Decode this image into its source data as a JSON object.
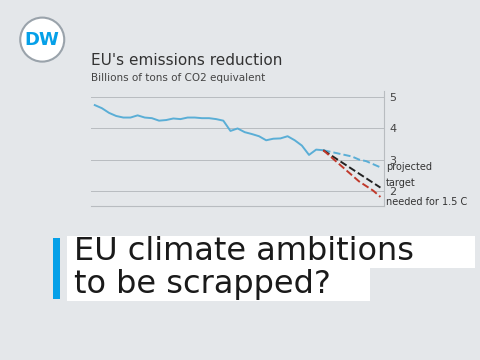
{
  "header": {
    "logo": "DW",
    "headline": [
      "EU climate ambitions",
      "to be scrapped?"
    ]
  },
  "chart_data": {
    "type": "line",
    "title": "EU's emissions reduction",
    "subtitle": "Billions of tons of CO2 equivalent",
    "categories": [
      null,
      null,
      null,
      null,
      null,
      null,
      null,
      null,
      null,
      null,
      null,
      null,
      null,
      null,
      null,
      null,
      null,
      null,
      null,
      null,
      null,
      null,
      null,
      null,
      null,
      null,
      null,
      null,
      null,
      null,
      null,
      null,
      null,
      null,
      null,
      null,
      null,
      null,
      null,
      null,
      null
    ],
    "series": [
      {
        "color": "#5aaed6",
        "line_style": "solid",
        "values": [
          4.75,
          4.65,
          4.5,
          4.4,
          4.35,
          4.35,
          4.42,
          4.35,
          4.33,
          4.25,
          4.27,
          4.32,
          4.3,
          4.35,
          4.35,
          4.33,
          4.33,
          4.3,
          4.25,
          3.92,
          4.0,
          3.88,
          3.82,
          3.75,
          3.62,
          3.67,
          3.68,
          3.75,
          3.62,
          3.45,
          3.15,
          3.32,
          3.3,
          null,
          null,
          null,
          null,
          null,
          null,
          null,
          null
        ]
      },
      {
        "name": "projected",
        "color": "#5aaed6",
        "line_style": "dashed",
        "values": [
          null,
          null,
          null,
          null,
          null,
          null,
          null,
          null,
          null,
          null,
          null,
          null,
          null,
          null,
          null,
          null,
          null,
          null,
          null,
          null,
          null,
          null,
          null,
          null,
          null,
          null,
          null,
          null,
          null,
          null,
          null,
          null,
          3.3,
          3.25,
          3.2,
          3.15,
          3.1,
          3.0,
          2.95,
          2.85,
          2.75
        ]
      },
      {
        "name": "target",
        "color": "#222222",
        "line_style": "dashed",
        "values": [
          null,
          null,
          null,
          null,
          null,
          null,
          null,
          null,
          null,
          null,
          null,
          null,
          null,
          null,
          null,
          null,
          null,
          null,
          null,
          null,
          null,
          null,
          null,
          null,
          null,
          null,
          null,
          null,
          null,
          null,
          null,
          null,
          3.3,
          3.15,
          3.0,
          2.85,
          2.7,
          2.55,
          2.4,
          2.25,
          2.1
        ]
      },
      {
        "name": "needed for 1.5 C",
        "color": "#c0392b",
        "line_style": "dashed",
        "values": [
          null,
          null,
          null,
          null,
          null,
          null,
          null,
          null,
          null,
          null,
          null,
          null,
          null,
          null,
          null,
          null,
          null,
          null,
          null,
          null,
          null,
          null,
          null,
          null,
          null,
          null,
          null,
          null,
          null,
          null,
          null,
          null,
          3.3,
          3.1,
          2.9,
          2.7,
          2.5,
          2.3,
          2.15,
          2.0,
          1.8
        ]
      }
    ],
    "ylim": [
      1.5,
      5.2
    ],
    "yticks": [
      2,
      3,
      4,
      5
    ],
    "grid": true,
    "tick_labels": "y"
  }
}
